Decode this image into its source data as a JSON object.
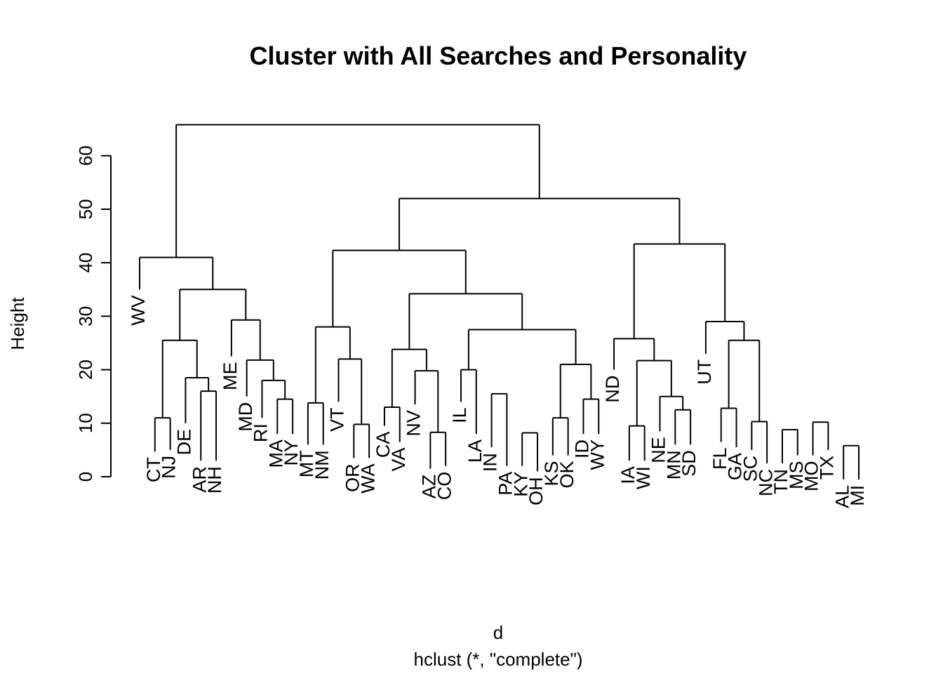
{
  "chart_data": {
    "type": "dendrogram",
    "title": "Cluster with All Searches and Personality",
    "xlabel": "d",
    "sublabel": "hclust (*, \"complete\")",
    "ylabel": "Height",
    "yticks": [
      0,
      10,
      20,
      30,
      40,
      50,
      60
    ],
    "ylim": [
      0,
      66
    ],
    "leaves": [
      "WV",
      "CT",
      "NJ",
      "DE",
      "AR",
      "NH",
      "ME",
      "MD",
      "RI",
      "MA",
      "NY",
      "MT",
      "NM",
      "VT",
      "OR",
      "WA",
      "CA",
      "VA",
      "NV",
      "AZ",
      "CO",
      "IL",
      "LA",
      "IN",
      "PA",
      "KY",
      "OH",
      "KS",
      "OK",
      "ID",
      "WY",
      "ND",
      "IA",
      "WI",
      "NE",
      "MN",
      "SD",
      "UT",
      "FL",
      "GA",
      "SC",
      "NC",
      "TN",
      "MS",
      "MO",
      "TX",
      "AL",
      "MI"
    ],
    "leaf_heights": [
      35,
      4.7,
      5,
      10,
      3,
      3,
      22.5,
      15,
      11,
      8,
      8,
      6,
      6,
      14,
      3.5,
      3.5,
      9.5,
      6.5,
      13.5,
      1.5,
      2,
      14,
      8,
      5.5,
      2,
      2,
      1,
      4,
      4,
      8,
      8,
      20,
      3,
      3,
      8.5,
      6,
      6,
      23,
      6.5,
      5.5,
      5,
      2.5,
      2.5,
      4,
      4,
      5,
      -0.5,
      -0.5
    ],
    "merges": [
      {
        "a": "AL",
        "b": "MI",
        "height": 5.8
      },
      {
        "a": "KY",
        "b": "OH",
        "height": 8.2
      },
      {
        "a": "AZ",
        "b": "CO",
        "height": 8.3
      },
      {
        "a": "TN",
        "b": "MS",
        "height": 8.8
      },
      {
        "a": "IA",
        "b": "WI",
        "height": 9.5
      },
      {
        "a": "OR",
        "b": "WA",
        "height": 9.8
      },
      {
        "a": "MO",
        "b": "TX",
        "height": 10.2
      },
      {
        "a": "CT",
        "b": "NJ",
        "height": 11
      },
      {
        "a": "KS",
        "b": "OK",
        "height": 11
      },
      {
        "a": "SC",
        "b": "NC",
        "height": 10.3
      },
      {
        "a": "MN",
        "b": "SD",
        "height": 12.5
      },
      {
        "a": "FL",
        "b": "GA",
        "height": 12.8
      },
      {
        "a": "CA",
        "b": "VA",
        "height": 13
      },
      {
        "a": "MT",
        "b": "NM",
        "height": 13.8
      },
      {
        "a": "ID",
        "b": "WY",
        "height": 14.5
      },
      {
        "a": "MA",
        "b": "NY",
        "height": 14.5
      },
      {
        "a": "NE",
        "b": "MN",
        "height": 15
      },
      {
        "a": "IN",
        "b": "PA",
        "height": 15.5
      },
      {
        "a": "AR",
        "b": "NH",
        "height": 16
      },
      {
        "a": "DE",
        "b": "AR",
        "height": 18.5
      },
      {
        "a": "RI",
        "b": "MA",
        "height": 18
      },
      {
        "a": "NV",
        "b": "AZ",
        "height": 19.8
      },
      {
        "a": "IL",
        "b": "LA",
        "height": 20
      },
      {
        "a": "MD",
        "b": "RI",
        "height": 21.8
      },
      {
        "a": "VT",
        "b": "OR",
        "height": 22
      },
      {
        "a": "IA",
        "b": "NE",
        "height": 21.7
      },
      {
        "a": "KS",
        "b": "ID",
        "height": 21
      },
      {
        "a": "ND",
        "b": "IA",
        "height": 25.8
      },
      {
        "a": "CA",
        "b": "NV",
        "height": 23.8
      },
      {
        "a": "CT",
        "b": "DE",
        "height": 25.5
      },
      {
        "a": "FL",
        "b": "NC",
        "height": 25.5
      },
      {
        "a": "IL",
        "b": "KS",
        "height": 27.5
      },
      {
        "a": "MT",
        "b": "VT",
        "height": 28
      },
      {
        "a": "ME",
        "b": "MD",
        "height": 29.3
      },
      {
        "a": "UT",
        "b": "FL",
        "height": 29
      },
      {
        "a": "CT",
        "b": "ME",
        "height": 35
      },
      {
        "a": "CA",
        "b": "IL",
        "height": 34.2
      },
      {
        "a": "WV",
        "b": "CT",
        "height": 41
      },
      {
        "a": "MT",
        "b": "CA",
        "height": 42.3
      },
      {
        "a": "ND",
        "b": "UT",
        "height": 43.5
      },
      {
        "a": "MT",
        "b": "ND",
        "height": 52
      },
      {
        "a": "WV",
        "b": "MT",
        "height": 65.8
      }
    ]
  }
}
